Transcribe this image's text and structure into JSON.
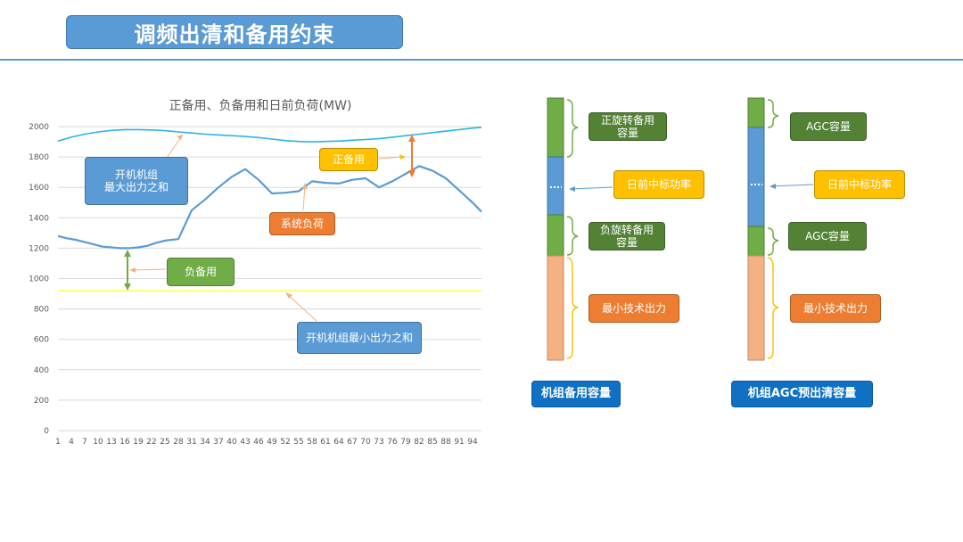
{
  "slide": {
    "title": "调频出清和备用约束"
  },
  "colors": {
    "accent": "#5b9bd5",
    "green": "#70ad47",
    "orange": "#ed7d31",
    "yellow": "#ffc000",
    "dark_green": "#548235",
    "navy": "#0f70c4",
    "peach": "#f4b183"
  },
  "chart_data": {
    "type": "line",
    "title": "正备用、负备用和日前负荷(MW)",
    "xlabel": "",
    "ylabel": "",
    "ylim": [
      0,
      2000
    ],
    "yticks": [
      "0",
      "200",
      "400",
      "600",
      "800",
      "1000",
      "1200",
      "1400",
      "1600",
      "1800",
      "2000"
    ],
    "xticks": [
      "1",
      "4",
      "7",
      "10",
      "13",
      "16",
      "19",
      "22",
      "25",
      "28",
      "31",
      "34",
      "37",
      "40",
      "43",
      "46",
      "49",
      "52",
      "55",
      "58",
      "61",
      "64",
      "67",
      "70",
      "73",
      "76",
      "79",
      "82",
      "85",
      "88",
      "91",
      "94"
    ],
    "grid": true,
    "series": [
      {
        "x": [
          1,
          4,
          7,
          10,
          13,
          16,
          19,
          22,
          25,
          28,
          31,
          34,
          37,
          40,
          43,
          46,
          49,
          52,
          55,
          58,
          61,
          64,
          67,
          70,
          73,
          76,
          79,
          82,
          85,
          88,
          91,
          94,
          96
        ],
        "values": [
          1905,
          1930,
          1950,
          1965,
          1975,
          1980,
          1980,
          1978,
          1973,
          1965,
          1958,
          1950,
          1945,
          1940,
          1935,
          1928,
          1918,
          1908,
          1902,
          1900,
          1902,
          1905,
          1910,
          1915,
          1920,
          1930,
          1940,
          1950,
          1960,
          1970,
          1980,
          1990,
          1995
        ]
      },
      {
        "x": [
          1,
          3,
          5,
          7,
          9,
          11,
          13,
          15,
          17,
          19,
          21,
          23,
          25,
          28,
          31,
          34,
          37,
          40,
          43,
          46,
          49,
          52,
          55,
          58,
          61,
          64,
          67,
          70,
          73,
          76,
          79,
          82,
          85,
          88,
          91,
          94,
          96
        ],
        "values": [
          1280,
          1265,
          1255,
          1240,
          1225,
          1210,
          1205,
          1200,
          1200,
          1205,
          1215,
          1235,
          1250,
          1260,
          1450,
          1520,
          1600,
          1670,
          1720,
          1650,
          1560,
          1565,
          1575,
          1640,
          1630,
          1625,
          1650,
          1660,
          1600,
          1640,
          1690,
          1740,
          1710,
          1660,
          1580,
          1500,
          1440
        ]
      },
      {
        "x": [
          1,
          96
        ],
        "values": [
          920,
          920
        ]
      }
    ],
    "annotations": [
      {
        "text": "开机机组\n最大出力之和"
      },
      {
        "text": "正备用"
      },
      {
        "text": "系统负荷"
      },
      {
        "text": "负备用"
      },
      {
        "text": "开机机组最小出力之和"
      }
    ]
  },
  "diagram": {
    "left_bar": {
      "labels": [
        "正旋转备用\n容量",
        "日前中标功率",
        "负旋转备用\n容量",
        "最小技术出力"
      ],
      "caption": "机组备用容量"
    },
    "right_bar": {
      "labels": [
        "AGC容量",
        "日前中标功率",
        "AGC容量",
        "最小技术出力"
      ],
      "caption": "机组AGC预出清容量"
    }
  }
}
